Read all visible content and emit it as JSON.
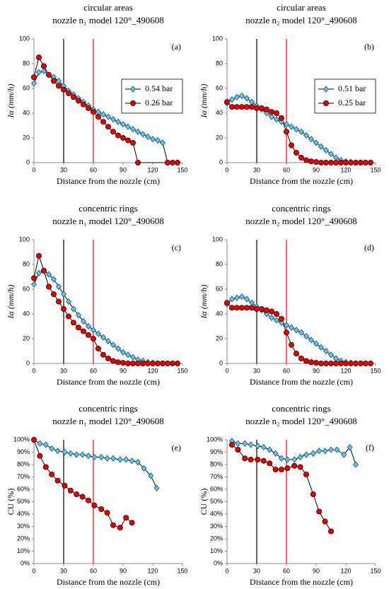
{
  "chart_data": [
    {
      "type": "line",
      "title": "circular areas",
      "subtitle": "nozzle n₁ model 120°_490608",
      "panel_label": "(a)",
      "xlabel": "Distance from the nozzle (cm)",
      "ylabel": "Iα (mm/h)",
      "xlim": [
        0,
        150
      ],
      "xticks": [
        0,
        30,
        60,
        90,
        120,
        150
      ],
      "ylim": [
        0,
        100
      ],
      "yticks": [
        0,
        20,
        40,
        60,
        80,
        100
      ],
      "grid": false,
      "legend": "right",
      "vlines": [
        {
          "value": 30,
          "color": "#000000"
        },
        {
          "value": 60,
          "color": "#ff0000"
        }
      ],
      "series": [
        {
          "name": "0.54 bar",
          "color": "#5bc8e8",
          "marker": "diamond",
          "x": [
            0,
            5,
            10,
            15,
            20,
            25,
            30,
            35,
            40,
            45,
            50,
            55,
            60,
            65,
            70,
            75,
            80,
            85,
            90,
            95,
            100,
            105,
            110,
            115,
            120,
            125,
            130,
            135
          ],
          "values": [
            64,
            73,
            74,
            71,
            69,
            66,
            62,
            58,
            55,
            52,
            49,
            46,
            43,
            41,
            39,
            37,
            35,
            33,
            31,
            29,
            27,
            25,
            23,
            21,
            19,
            18,
            16,
            0
          ]
        },
        {
          "name": "0.26 bar",
          "color": "#e00000",
          "marker": "circle",
          "x": [
            0,
            5,
            10,
            15,
            20,
            25,
            30,
            35,
            40,
            45,
            50,
            55,
            60,
            65,
            70,
            75,
            80,
            85,
            90,
            95,
            100,
            105,
            135,
            140,
            145
          ],
          "values": [
            69,
            85,
            78,
            71,
            66,
            62,
            59,
            56,
            53,
            50,
            47,
            44,
            41,
            37,
            33,
            29,
            25,
            22,
            20,
            18,
            16,
            0,
            0,
            0,
            0
          ]
        }
      ]
    },
    {
      "type": "line",
      "title": "circular areas",
      "subtitle": "nozzle n₂ model 120°_490608",
      "panel_label": "(b)",
      "xlabel": "Distance from the nozzle (cm)",
      "ylabel": "Iα (mm/h)",
      "xlim": [
        0,
        150
      ],
      "xticks": [
        0,
        30,
        60,
        90,
        120,
        150
      ],
      "ylim": [
        0,
        100
      ],
      "yticks": [
        0,
        20,
        40,
        60,
        80,
        100
      ],
      "grid": false,
      "legend": "right",
      "vlines": [
        {
          "value": 30,
          "color": "#000000"
        },
        {
          "value": 60,
          "color": "#ff0000"
        }
      ],
      "series": [
        {
          "name": "0.51 bar",
          "color": "#5bc8e8",
          "marker": "diamond",
          "x": [
            0,
            5,
            10,
            15,
            20,
            25,
            30,
            35,
            40,
            45,
            50,
            55,
            60,
            65,
            70,
            75,
            80,
            85,
            90,
            95,
            100,
            105,
            110,
            115,
            120,
            125,
            130
          ],
          "values": [
            48,
            51,
            53,
            54,
            52,
            49,
            46,
            43,
            40,
            37,
            35,
            33,
            31,
            29,
            27,
            25,
            22,
            19,
            16,
            13,
            10,
            7,
            4,
            2,
            1,
            0.5,
            0
          ]
        },
        {
          "name": "0.25 bar",
          "color": "#e00000",
          "marker": "circle",
          "x": [
            0,
            5,
            10,
            15,
            20,
            25,
            30,
            35,
            40,
            45,
            50,
            55,
            60,
            65,
            70,
            75,
            80,
            85,
            90,
            95,
            100,
            105,
            110,
            115,
            120,
            125,
            130,
            135,
            140,
            145
          ],
          "values": [
            49,
            45,
            45,
            45,
            45,
            45,
            44,
            44,
            43,
            41,
            40,
            36,
            25,
            14,
            8,
            4,
            2,
            1,
            0.5,
            0,
            0,
            0,
            0,
            0,
            0,
            0,
            0,
            0,
            0,
            0
          ]
        }
      ]
    },
    {
      "type": "line",
      "title": "concentric rings",
      "subtitle": "nozzle n₁ model 120°_490608",
      "panel_label": "(c)",
      "xlabel": "Distance from the nozzle (cm)",
      "ylabel": "Iα (mm/h)",
      "xlim": [
        0,
        150
      ],
      "xticks": [
        0,
        30,
        60,
        90,
        120,
        150
      ],
      "ylim": [
        0,
        100
      ],
      "yticks": [
        0,
        20,
        40,
        60,
        80,
        100
      ],
      "grid": false,
      "vlines": [
        {
          "value": 30,
          "color": "#000000"
        },
        {
          "value": 60,
          "color": "#ff0000"
        }
      ],
      "series": [
        {
          "color": "#5bc8e8",
          "marker": "diamond",
          "x": [
            0,
            5,
            10,
            15,
            20,
            25,
            30,
            35,
            40,
            45,
            50,
            55,
            60,
            65,
            70,
            75,
            80,
            85,
            90,
            95,
            100,
            105,
            110,
            115,
            120,
            125,
            130
          ],
          "values": [
            64,
            73,
            75,
            72,
            68,
            62,
            56,
            50,
            44,
            39,
            34,
            30,
            27,
            24,
            21,
            18,
            15,
            12,
            9,
            7,
            5,
            3,
            2,
            1,
            0.5,
            0,
            0
          ]
        },
        {
          "color": "#e00000",
          "marker": "circle",
          "x": [
            0,
            5,
            10,
            15,
            20,
            25,
            30,
            35,
            40,
            45,
            50,
            55,
            60,
            65,
            70,
            75,
            80,
            85,
            90,
            95,
            100,
            105,
            110,
            115,
            120,
            125,
            130,
            135,
            140,
            145
          ],
          "values": [
            69,
            87,
            75,
            62,
            56,
            50,
            44,
            38,
            33,
            29,
            26,
            23,
            20,
            12,
            7,
            4,
            2,
            1,
            0.5,
            0,
            0,
            0,
            0,
            0,
            0,
            0,
            0,
            0,
            0,
            0
          ]
        }
      ]
    },
    {
      "type": "line",
      "title": "concentric rings",
      "subtitle": "nozzle n₂ model 120°_490608",
      "panel_label": "(d)",
      "xlabel": "Distance from the nozzle (cm)",
      "ylabel": "Iα (mm/h)",
      "xlim": [
        0,
        150
      ],
      "xticks": [
        0,
        30,
        60,
        90,
        120,
        150
      ],
      "ylim": [
        0,
        100
      ],
      "yticks": [
        0,
        20,
        40,
        60,
        80,
        100
      ],
      "grid": false,
      "vlines": [
        {
          "value": 30,
          "color": "#000000"
        },
        {
          "value": 60,
          "color": "#ff0000"
        }
      ],
      "series": [
        {
          "color": "#5bc8e8",
          "marker": "diamond",
          "x": [
            0,
            5,
            10,
            15,
            20,
            25,
            30,
            35,
            40,
            45,
            50,
            55,
            60,
            65,
            70,
            75,
            80,
            85,
            90,
            95,
            100,
            105,
            110,
            115,
            120,
            125,
            130
          ],
          "values": [
            48,
            52,
            53,
            54,
            52,
            49,
            46,
            43,
            40,
            37,
            35,
            33,
            31,
            29,
            27,
            25,
            22,
            19,
            16,
            13,
            10,
            7,
            4,
            2,
            1,
            0.5,
            0
          ]
        },
        {
          "color": "#e00000",
          "marker": "circle",
          "x": [
            0,
            5,
            10,
            15,
            20,
            25,
            30,
            35,
            40,
            45,
            50,
            55,
            60,
            65,
            70,
            75,
            80,
            85,
            90,
            95,
            100,
            105,
            110,
            115,
            120,
            125,
            130,
            135,
            140,
            145
          ],
          "values": [
            49,
            45,
            45,
            45,
            45,
            45,
            44,
            44,
            43,
            42,
            40,
            36,
            25,
            15,
            8,
            4,
            2,
            1,
            0.5,
            0,
            0,
            0,
            0,
            0,
            0,
            0,
            0,
            0,
            0,
            0
          ]
        }
      ]
    },
    {
      "type": "line",
      "title": "concentric rings",
      "subtitle": "nozzle n₁ model 120°_490608",
      "panel_label": "(e)",
      "xlabel": "Distance from the nozzle (cm)",
      "ylabel": "CU (%)",
      "xlim": [
        0,
        150
      ],
      "xticks": [
        0,
        30,
        60,
        90,
        120,
        150
      ],
      "ylim": [
        0,
        100
      ],
      "yticks": [
        {
          "value": 0,
          "label": "0%"
        },
        {
          "value": 10,
          "label": "10%"
        },
        {
          "value": 20,
          "label": "20%"
        },
        {
          "value": 30,
          "label": "30%"
        },
        {
          "value": 40,
          "label": "40%"
        },
        {
          "value": 50,
          "label": "50%"
        },
        {
          "value": 60,
          "label": "60%"
        },
        {
          "value": 70,
          "label": "70%"
        },
        {
          "value": 80,
          "label": "80%"
        },
        {
          "value": 90,
          "label": "90%"
        },
        {
          "value": 100,
          "label": "100%"
        }
      ],
      "grid": false,
      "vlines": [
        {
          "value": 30,
          "color": "#000000"
        },
        {
          "value": 60,
          "color": "#ff0000"
        }
      ],
      "series": [
        {
          "color": "#5bc8e8",
          "marker": "diamond",
          "x": [
            0,
            6,
            12,
            18,
            24,
            31,
            37,
            43,
            49,
            55,
            61,
            68,
            74,
            80,
            87,
            93,
            99,
            105,
            111,
            118,
            124
          ],
          "values": [
            100,
            97,
            96,
            93,
            91,
            90,
            89,
            88,
            88,
            87,
            86,
            86,
            85,
            85,
            84,
            84,
            83,
            82,
            77,
            71,
            61
          ]
        },
        {
          "color": "#e00000",
          "marker": "circle",
          "x": [
            0,
            6,
            12,
            18,
            24,
            31,
            37,
            43,
            49,
            55,
            61,
            68,
            74,
            80,
            87,
            93,
            99
          ],
          "values": [
            100,
            87,
            78,
            72,
            67,
            63,
            59,
            56,
            54,
            51,
            47,
            44,
            41,
            31,
            29,
            37,
            33
          ]
        }
      ]
    },
    {
      "type": "line",
      "title": "concentric rings",
      "subtitle": "nozzle n₂ model 120°_490608",
      "panel_label": "(f)",
      "xlabel": "Distance from the nozzle (cm)",
      "ylabel": "CU (%)",
      "xlim": [
        0,
        150
      ],
      "xticks": [
        0,
        30,
        60,
        90,
        120,
        150
      ],
      "ylim": [
        0,
        100
      ],
      "yticks": [
        {
          "value": 0,
          "label": "0%"
        },
        {
          "value": 10,
          "label": "10%"
        },
        {
          "value": 20,
          "label": "20%"
        },
        {
          "value": 30,
          "label": "30%"
        },
        {
          "value": 40,
          "label": "40%"
        },
        {
          "value": 50,
          "label": "50%"
        },
        {
          "value": 60,
          "label": "60%"
        },
        {
          "value": 70,
          "label": "70%"
        },
        {
          "value": 80,
          "label": "80%"
        },
        {
          "value": 90,
          "label": "90%"
        },
        {
          "value": 100,
          "label": "100%"
        }
      ],
      "grid": false,
      "vlines": [
        {
          "value": 30,
          "color": "#000000"
        },
        {
          "value": 60,
          "color": "#ff0000"
        }
      ],
      "series": [
        {
          "color": "#5bc8e8",
          "marker": "diamond",
          "x": [
            5,
            11,
            18,
            24,
            31,
            37,
            43,
            49,
            55,
            61,
            68,
            74,
            80,
            87,
            93,
            99,
            105,
            111,
            118,
            124,
            130
          ],
          "values": [
            99,
            97,
            97,
            96,
            95,
            94,
            92,
            89,
            85,
            84,
            84,
            86,
            88,
            89,
            91,
            91,
            92,
            92,
            88,
            94,
            80
          ]
        },
        {
          "color": "#e00000",
          "marker": "circle",
          "x": [
            5,
            11,
            18,
            24,
            31,
            37,
            43,
            49,
            55,
            61,
            68,
            74,
            80,
            87,
            93,
            99,
            105
          ],
          "values": [
            96,
            92,
            85,
            84,
            84,
            83,
            81,
            76,
            76,
            77,
            79,
            78,
            72,
            56,
            42,
            34,
            26
          ]
        }
      ]
    }
  ]
}
